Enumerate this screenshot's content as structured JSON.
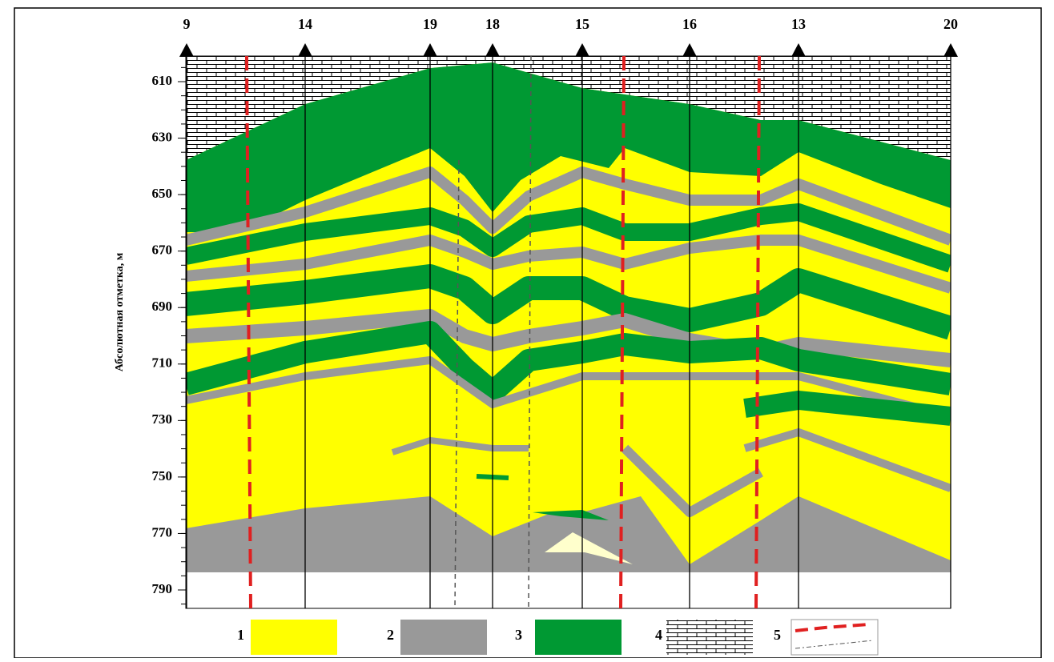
{
  "axis": {
    "label": "Абсолютная отметка, м",
    "ticks": [
      610,
      630,
      650,
      670,
      690,
      710,
      730,
      750,
      770,
      790
    ]
  },
  "wells": [
    "9",
    "14",
    "19",
    "18",
    "15",
    "16",
    "13",
    "20"
  ],
  "legend": [
    "1",
    "2",
    "3",
    "4",
    "5"
  ]
}
